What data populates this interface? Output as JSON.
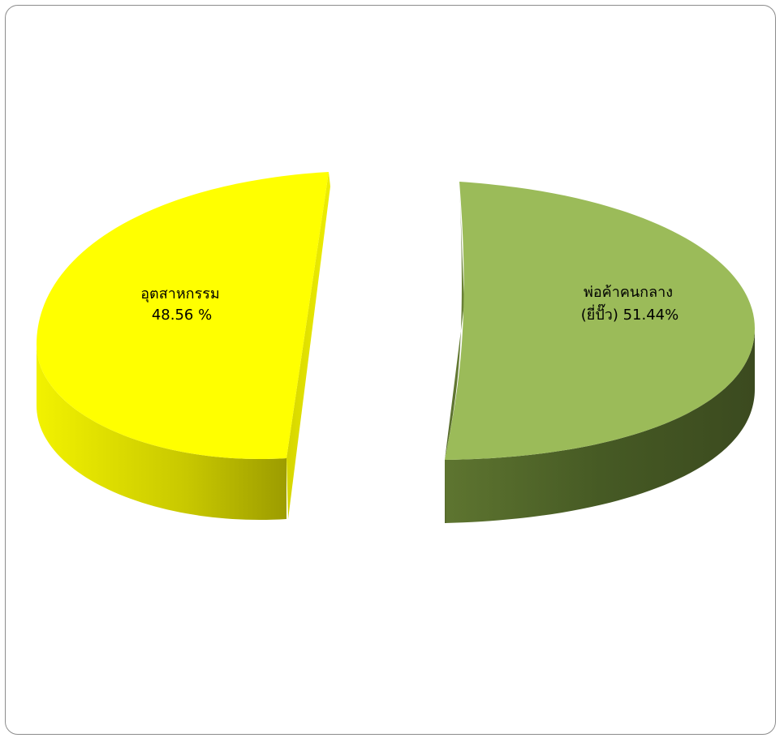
{
  "chart_data": {
    "type": "pie",
    "style": "3d-exploded",
    "slices": [
      {
        "label_line1": "อุตสาหกรรม",
        "label_line2": "48.56 %",
        "value": 48.56,
        "color": "#ffff00",
        "side_color": "#b8b800"
      },
      {
        "label_line1": "พ่อค้าคนกลาง",
        "label_line2": "(ยี่ปั๊ว)  51.44%",
        "value": 51.44,
        "color": "#9bbb59",
        "side_color": "#4f6228"
      }
    ]
  }
}
